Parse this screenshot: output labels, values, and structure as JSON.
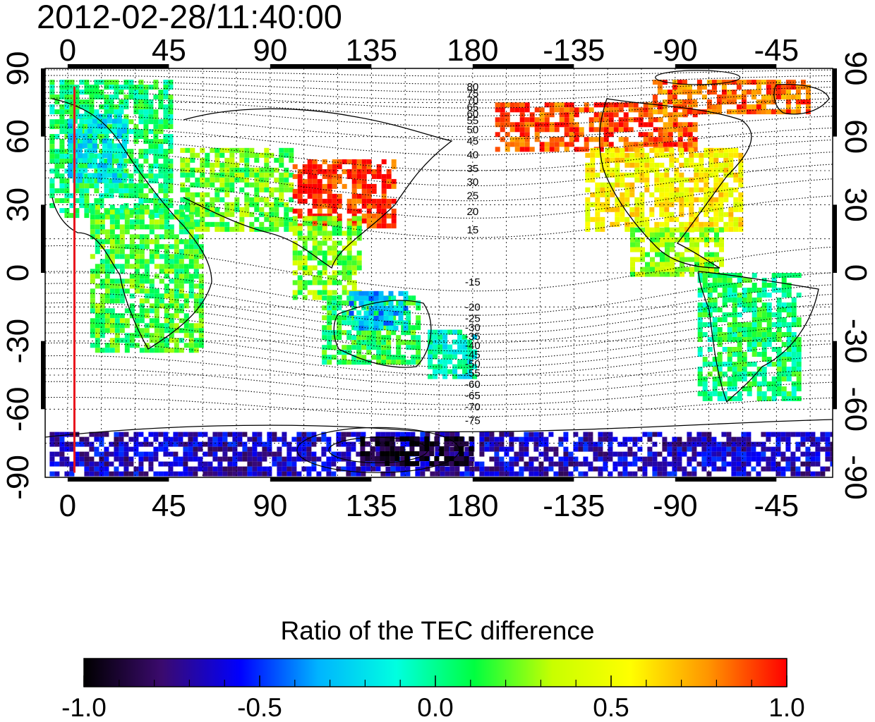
{
  "timestamp": "2012-02-28/11:40:00",
  "map": {
    "lon_top_ticks": [
      "0",
      "45",
      "90",
      "135",
      "180",
      "-135",
      "-90",
      "-45"
    ],
    "lon_bottom_ticks": [
      "0",
      "45",
      "90",
      "135",
      "180",
      "-135",
      "-90",
      "-45"
    ],
    "lon_tick_values": [
      0,
      45,
      90,
      135,
      180,
      225,
      270,
      315
    ],
    "lat_left_ticks": [
      "90",
      "60",
      "30",
      "0",
      "-30",
      "-60",
      "-90"
    ],
    "lat_right_ticks": [
      "90",
      "60",
      "30",
      "0",
      "-30",
      "-60",
      "-90"
    ],
    "lat_tick_values": [
      90,
      60,
      30,
      0,
      -30,
      -60,
      -90
    ],
    "lon_range": [
      -10,
      340
    ],
    "lat_range": [
      -90,
      90
    ],
    "dip_labels_north": [
      "80",
      "75",
      "70",
      "65",
      "60",
      "55",
      "50",
      "45",
      "40",
      "35",
      "30",
      "25",
      "20",
      "15"
    ],
    "dip_labels_south": [
      "-15",
      "-20",
      "-25",
      "-30",
      "-35",
      "-40",
      "-45",
      "-50",
      "-55",
      "-60",
      "-65",
      "-70",
      "-75"
    ],
    "dip_label_lats_north": [
      82,
      79,
      76,
      73,
      70,
      67,
      63,
      58,
      52,
      46,
      40,
      34,
      27,
      19
    ],
    "dip_label_lats_south": [
      -4,
      -15,
      -20,
      -24,
      -28,
      -32,
      -36,
      -40,
      -44,
      -49,
      -54,
      -59,
      -65
    ],
    "dip_label_lon": 180,
    "marker_meridian_lon": 3,
    "marker_color": "#e8141c",
    "data_regions": [
      {
        "lon": [
          -8,
          45
        ],
        "lat": [
          25,
          85
        ],
        "ratio": 0.05
      },
      {
        "lon": [
          0,
          25
        ],
        "lat": [
          40,
          70
        ],
        "ratio": -0.18
      },
      {
        "lon": [
          10,
          60
        ],
        "lat": [
          -35,
          30
        ],
        "ratio": 0.15
      },
      {
        "lon": [
          50,
          100
        ],
        "lat": [
          20,
          55
        ],
        "ratio": 0.2
      },
      {
        "lon": [
          100,
          145
        ],
        "lat": [
          20,
          50
        ],
        "ratio": 0.95
      },
      {
        "lon": [
          100,
          130
        ],
        "lat": [
          -10,
          25
        ],
        "ratio": 0.25
      },
      {
        "lon": [
          113,
          155
        ],
        "lat": [
          -40,
          -10
        ],
        "ratio": 0.1
      },
      {
        "lon": [
          125,
          150
        ],
        "lat": [
          -25,
          -8
        ],
        "ratio": -0.3
      },
      {
        "lon": [
          160,
          180
        ],
        "lat": [
          -45,
          -25
        ],
        "ratio": -0.1
      },
      {
        "lon": [
          190,
          280
        ],
        "lat": [
          55,
          75
        ],
        "ratio": 0.9
      },
      {
        "lon": [
          230,
          300
        ],
        "lat": [
          20,
          55
        ],
        "ratio": 0.55
      },
      {
        "lon": [
          250,
          290
        ],
        "lat": [
          0,
          20
        ],
        "ratio": 0.3
      },
      {
        "lon": [
          280,
          325
        ],
        "lat": [
          -55,
          0
        ],
        "ratio": 0.05
      },
      {
        "lon": [
          260,
          330
        ],
        "lat": [
          70,
          85
        ],
        "ratio": 0.85
      },
      {
        "lon": [
          -8,
          340
        ],
        "lat": [
          -88,
          -70
        ],
        "ratio": -0.65
      },
      {
        "lon": [
          130,
          180
        ],
        "lat": [
          -85,
          -72
        ],
        "ratio": -0.95
      }
    ]
  },
  "colorbar": {
    "title": "Ratio of the TEC difference",
    "ticks": [
      "-1.0",
      "-0.5",
      "0.0",
      "0.5",
      "1.0"
    ],
    "tick_values": [
      -1.0,
      -0.5,
      0.0,
      0.5,
      1.0
    ],
    "range": [
      -1.0,
      1.0
    ],
    "colors": [
      "#000000",
      "#3b0a6e",
      "#0000ff",
      "#00b4ff",
      "#00ffe0",
      "#00ff40",
      "#c8ff00",
      "#ffff00",
      "#ff9400",
      "#ff0000"
    ]
  }
}
